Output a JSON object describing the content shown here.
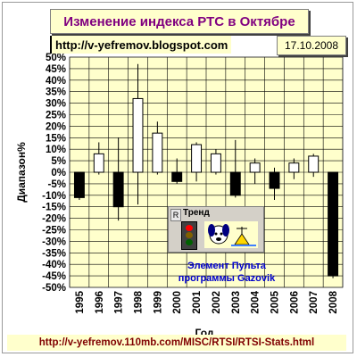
{
  "header": {
    "title": "Изменение индекса РТС в Октябре",
    "url": "http://v-yefremov.blogspot.com",
    "date": "17.10.2008"
  },
  "footer": {
    "url": "http://v-yefremov.110mb.com/MISC/RTSI/RTSI-Stats.html"
  },
  "widget": {
    "r_label": "R",
    "title": "Тренд",
    "caption_line1": "Элемент Пульта",
    "caption_line2": "программы Gazovik"
  },
  "colors": {
    "plot_bg": "#ffffcc",
    "grid": "#000000",
    "up_fill": "#ffffff",
    "down_fill": "#000000",
    "title": "#800080",
    "footer_text": "#800000",
    "caption": "#0000cc"
  },
  "chart_data": {
    "type": "candlestick",
    "title": "Изменение индекса РТС в Октябре",
    "xlabel": "Год",
    "ylabel": "Диапазон%",
    "ylim": [
      -50,
      50
    ],
    "y_tick_step": 5,
    "y_tick_suffix": "%",
    "grid": true,
    "categories": [
      "1995",
      "1996",
      "1997",
      "1998",
      "1999",
      "2000",
      "2001",
      "2002",
      "2003",
      "2004",
      "2005",
      "2006",
      "2007",
      "2008"
    ],
    "candles": [
      {
        "year": "1995",
        "open": 0,
        "close": -11,
        "high": 0,
        "low": -12
      },
      {
        "year": "1996",
        "open": 0,
        "close": 8,
        "high": 13,
        "low": -1
      },
      {
        "year": "1997",
        "open": 0,
        "close": -15,
        "high": 15,
        "low": -21
      },
      {
        "year": "1998",
        "open": 0,
        "close": 32,
        "high": 47,
        "low": -14
      },
      {
        "year": "1999",
        "open": 0,
        "close": 17,
        "high": 22,
        "low": -1
      },
      {
        "year": "2000",
        "open": 0,
        "close": -4,
        "high": 6,
        "low": -5
      },
      {
        "year": "2001",
        "open": 0,
        "close": 12,
        "high": 13,
        "low": -4
      },
      {
        "year": "2002",
        "open": 0,
        "close": 8,
        "high": 10,
        "low": -1
      },
      {
        "year": "2003",
        "open": 0,
        "close": -10,
        "high": 14,
        "low": -11
      },
      {
        "year": "2004",
        "open": 0,
        "close": 4,
        "high": 6,
        "low": -5
      },
      {
        "year": "2005",
        "open": 0,
        "close": -7,
        "high": 2,
        "low": -12
      },
      {
        "year": "2006",
        "open": 0,
        "close": 4,
        "high": 6,
        "low": -3
      },
      {
        "year": "2007",
        "open": 0,
        "close": 7,
        "high": 8,
        "low": -2
      },
      {
        "year": "2008",
        "open": 0,
        "close": -45,
        "high": 0,
        "low": -46
      }
    ]
  }
}
